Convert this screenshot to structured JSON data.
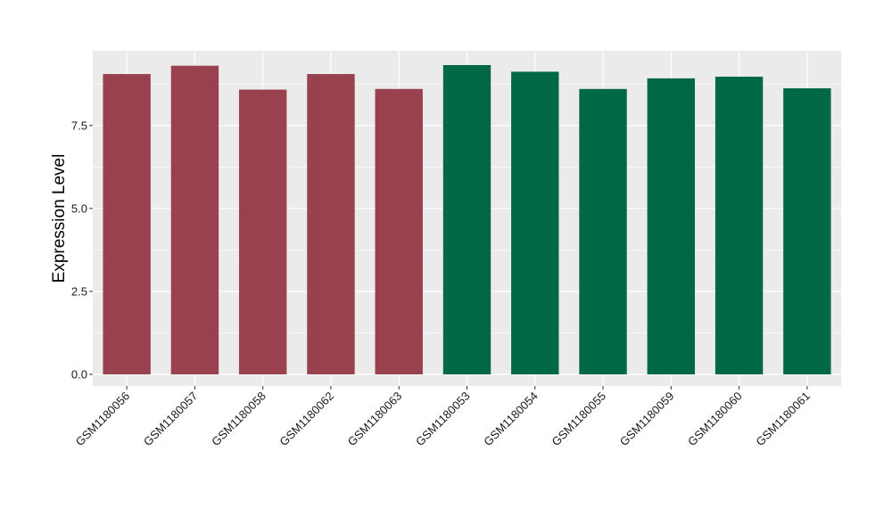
{
  "chart_data": {
    "type": "bar",
    "title": "",
    "xlabel": "",
    "ylabel": "Expression Level",
    "ylim": [
      -0.35,
      9.75
    ],
    "yticks": [
      0.0,
      2.5,
      5.0,
      7.5
    ],
    "ytick_labels": [
      "0.0",
      "2.5",
      "5.0",
      "7.5"
    ],
    "grid": true,
    "legend": "none",
    "colors": {
      "panel_background": "#ebebeb",
      "grid_major": "#ffffff",
      "group_a": "#99414e",
      "group_b": "#006845"
    },
    "categories": [
      "GSM1180056",
      "GSM1180057",
      "GSM1180058",
      "GSM1180062",
      "GSM1180063",
      "GSM1180053",
      "GSM1180054",
      "GSM1180055",
      "GSM1180059",
      "GSM1180060",
      "GSM1180061"
    ],
    "values": [
      9.05,
      9.3,
      8.58,
      9.05,
      8.6,
      9.32,
      9.12,
      8.6,
      8.92,
      8.97,
      8.62
    ],
    "bar_colors": [
      "#99414e",
      "#99414e",
      "#99414e",
      "#99414e",
      "#99414e",
      "#006845",
      "#006845",
      "#006845",
      "#006845",
      "#006845",
      "#006845"
    ]
  }
}
